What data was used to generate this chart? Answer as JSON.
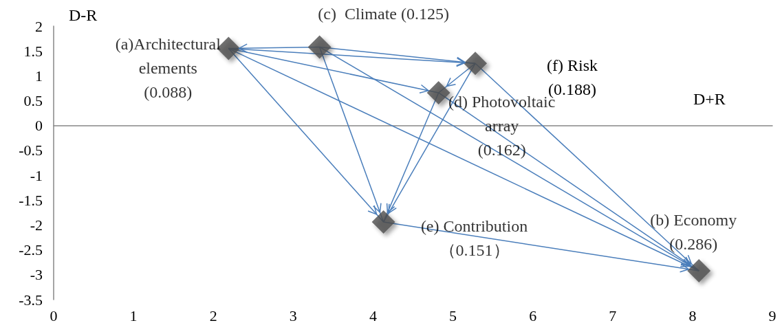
{
  "chart_data": {
    "type": "scatter",
    "xlabel": "D+R",
    "ylabel": "D-R",
    "xlim": [
      0,
      9
    ],
    "xticks": [
      0,
      1,
      2,
      3,
      4,
      5,
      6,
      7,
      8,
      9
    ],
    "ylim": [
      -3.5,
      2
    ],
    "yticks": [
      -3.5,
      -3,
      -2.5,
      -2,
      -1.5,
      -1,
      -0.5,
      0,
      0.5,
      1,
      1.5,
      2
    ],
    "series": [
      {
        "color": "#4d4d4d",
        "marker": "diamond",
        "x": [
          2.19,
          8.08,
          3.33,
          4.82,
          4.13,
          5.28
        ],
        "values": [
          1.55,
          -2.92,
          1.58,
          0.66,
          -1.94,
          1.25
        ]
      },
      {
        "type": "line",
        "color": "#4a7ebb",
        "x": [
          3.33,
          2.19
        ],
        "values": [
          1.58,
          1.55
        ]
      },
      {
        "type": "line",
        "color": "#4a7ebb",
        "x": [
          2.19,
          5.28
        ],
        "values": [
          1.55,
          1.25
        ]
      },
      {
        "type": "line",
        "color": "#4a7ebb",
        "x": [
          3.33,
          5.28
        ],
        "values": [
          1.58,
          1.25
        ]
      },
      {
        "type": "line",
        "color": "#4a7ebb",
        "x": [
          2.19,
          4.82
        ],
        "values": [
          1.55,
          0.66
        ]
      },
      {
        "type": "line",
        "color": "#4a7ebb",
        "x": [
          5.28,
          4.82
        ],
        "values": [
          1.25,
          0.66
        ]
      },
      {
        "type": "line",
        "color": "#4a7ebb",
        "x": [
          2.19,
          4.13
        ],
        "values": [
          1.55,
          -1.94
        ]
      },
      {
        "type": "line",
        "color": "#4a7ebb",
        "x": [
          3.33,
          4.13
        ],
        "values": [
          1.58,
          -1.94
        ]
      },
      {
        "type": "line",
        "color": "#4a7ebb",
        "x": [
          4.82,
          4.13
        ],
        "values": [
          0.66,
          -1.94
        ]
      },
      {
        "type": "line",
        "color": "#4a7ebb",
        "x": [
          5.28,
          4.13
        ],
        "values": [
          1.25,
          -1.94
        ]
      },
      {
        "type": "line",
        "color": "#4a7ebb",
        "x": [
          2.19,
          8.08
        ],
        "values": [
          1.55,
          -2.92
        ]
      },
      {
        "type": "line",
        "color": "#4a7ebb",
        "x": [
          3.33,
          8.08
        ],
        "values": [
          1.58,
          -2.92
        ]
      },
      {
        "type": "line",
        "color": "#4a7ebb",
        "x": [
          4.82,
          8.08
        ],
        "values": [
          0.66,
          -2.92
        ]
      },
      {
        "type": "line",
        "color": "#4a7ebb",
        "x": [
          5.28,
          8.08
        ],
        "values": [
          1.25,
          -2.92
        ]
      },
      {
        "type": "line",
        "color": "#4a7ebb",
        "x": [
          4.13,
          8.08
        ],
        "values": [
          -1.94,
          -2.92
        ]
      }
    ],
    "annotations": [
      {
        "text": "(a)Architectural\nelements\n(0.088)",
        "x": 2.19,
        "y": 1.55
      },
      {
        "text": "(b) Economy\n(0.286)",
        "x": 8.08,
        "y": -2.92
      },
      {
        "text": "(c)  Climate (0.125)",
        "x": 3.33,
        "y": 1.58
      },
      {
        "text": "(d) Photovoltaic\narray\n(0.162)",
        "x": 4.82,
        "y": 0.66
      },
      {
        "text": "(e) Contribution\n（0.151）",
        "x": 4.13,
        "y": -1.94
      },
      "(f) Risk\n(0.188)"
    ]
  }
}
